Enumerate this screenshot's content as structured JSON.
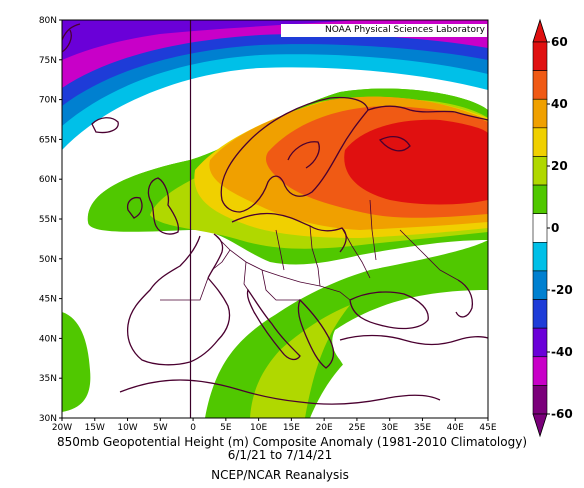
{
  "header": {
    "credit": "NOAA Physical Sciences Laboratory"
  },
  "map": {
    "lat_labels": [
      "80N",
      "75N",
      "70N",
      "65N",
      "60N",
      "55N",
      "50N",
      "45N",
      "40N",
      "35N",
      "30N"
    ],
    "lon_labels": [
      "20W",
      "15W",
      "10W",
      "5W",
      "0",
      "5E",
      "10E",
      "15E",
      "20E",
      "25E",
      "30E",
      "35E",
      "40E",
      "45E"
    ],
    "lat_range": [
      30,
      80
    ],
    "lon_range": [
      -20,
      45
    ]
  },
  "colorbar": {
    "labels": [
      "60",
      "40",
      "20",
      "0",
      "-20",
      "-40",
      "-60"
    ],
    "colors": [
      "#e01010",
      "#f05a14",
      "#f0a000",
      "#f0d000",
      "#b0d800",
      "#50c800",
      "#ffffff",
      "#00c0e8",
      "#0080d0",
      "#1e3cd8",
      "#6a00d8",
      "#c800c8",
      "#7a007a"
    ]
  },
  "caption": {
    "line1": "850mb Geopotential Height (m) Composite Anomaly (1981-2010 Climatology)",
    "line2": "6/1/21 to 7/14/21",
    "line3": "NCEP/NCAR Reanalysis"
  }
}
